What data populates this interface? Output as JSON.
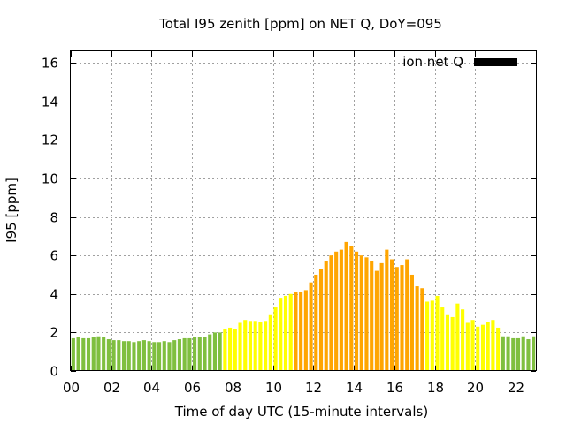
{
  "chart_data": {
    "type": "bar",
    "title": "Total I95 zenith [ppm] on NET Q, DoY=095",
    "xlabel": "Time of day UTC (15-minute intervals)",
    "ylabel": "I95 [ppm]",
    "xlim": [
      0,
      23
    ],
    "ylim": [
      0,
      16.6
    ],
    "x_ticks": [
      0,
      2,
      4,
      6,
      8,
      10,
      12,
      14,
      16,
      18,
      20,
      22
    ],
    "x_tick_labels": [
      "00",
      "02",
      "04",
      "06",
      "08",
      "10",
      "12",
      "14",
      "16",
      "18",
      "20",
      "22"
    ],
    "y_ticks": [
      0,
      2,
      4,
      6,
      8,
      10,
      12,
      14,
      16
    ],
    "y_tick_labels": [
      "0",
      "2",
      "4",
      "6",
      "8",
      "10",
      "12",
      "14",
      "16"
    ],
    "grid": true,
    "legend": {
      "position": "top-right",
      "entries": [
        {
          "label": "ion net Q",
          "color": "#000000"
        }
      ]
    },
    "interval_hours": 0.25,
    "level_colors": {
      "low": "#7fbf3f",
      "medium": "#ffff00",
      "high": "#ffa500"
    },
    "values": [
      1.7,
      1.75,
      1.7,
      1.7,
      1.75,
      1.8,
      1.75,
      1.65,
      1.6,
      1.6,
      1.55,
      1.55,
      1.5,
      1.55,
      1.6,
      1.55,
      1.5,
      1.5,
      1.55,
      1.5,
      1.6,
      1.65,
      1.7,
      1.7,
      1.75,
      1.75,
      1.75,
      1.9,
      2.0,
      2.0,
      2.2,
      2.25,
      2.2,
      2.5,
      2.65,
      2.6,
      2.6,
      2.55,
      2.6,
      2.9,
      3.3,
      3.8,
      3.9,
      4.0,
      4.1,
      4.1,
      4.2,
      4.6,
      5.0,
      5.3,
      5.7,
      6.0,
      6.2,
      6.3,
      6.7,
      6.5,
      6.2,
      6.0,
      5.9,
      5.7,
      5.2,
      5.6,
      6.3,
      5.8,
      5.4,
      5.5,
      5.8,
      5.0,
      4.4,
      4.3,
      3.6,
      3.65,
      3.9,
      3.3,
      2.9,
      2.8,
      3.5,
      3.2,
      2.5,
      2.65,
      2.3,
      2.4,
      2.55,
      2.65,
      2.25,
      1.8,
      1.8,
      1.7,
      1.7,
      1.8,
      1.65,
      1.8
    ],
    "levels": [
      "low",
      "low",
      "low",
      "low",
      "low",
      "low",
      "low",
      "low",
      "low",
      "low",
      "low",
      "low",
      "low",
      "low",
      "low",
      "low",
      "low",
      "low",
      "low",
      "low",
      "low",
      "low",
      "low",
      "low",
      "low",
      "low",
      "low",
      "low",
      "low",
      "low",
      "medium",
      "medium",
      "medium",
      "medium",
      "medium",
      "medium",
      "medium",
      "medium",
      "medium",
      "medium",
      "medium",
      "medium",
      "medium",
      "medium",
      "high",
      "high",
      "high",
      "high",
      "high",
      "high",
      "high",
      "high",
      "high",
      "high",
      "high",
      "high",
      "high",
      "high",
      "high",
      "high",
      "high",
      "high",
      "high",
      "high",
      "high",
      "high",
      "high",
      "high",
      "high",
      "high",
      "medium",
      "medium",
      "medium",
      "medium",
      "medium",
      "medium",
      "medium",
      "medium",
      "medium",
      "medium",
      "medium",
      "medium",
      "medium",
      "medium",
      "medium",
      "low",
      "low",
      "low",
      "low",
      "low",
      "low",
      "low"
    ]
  }
}
